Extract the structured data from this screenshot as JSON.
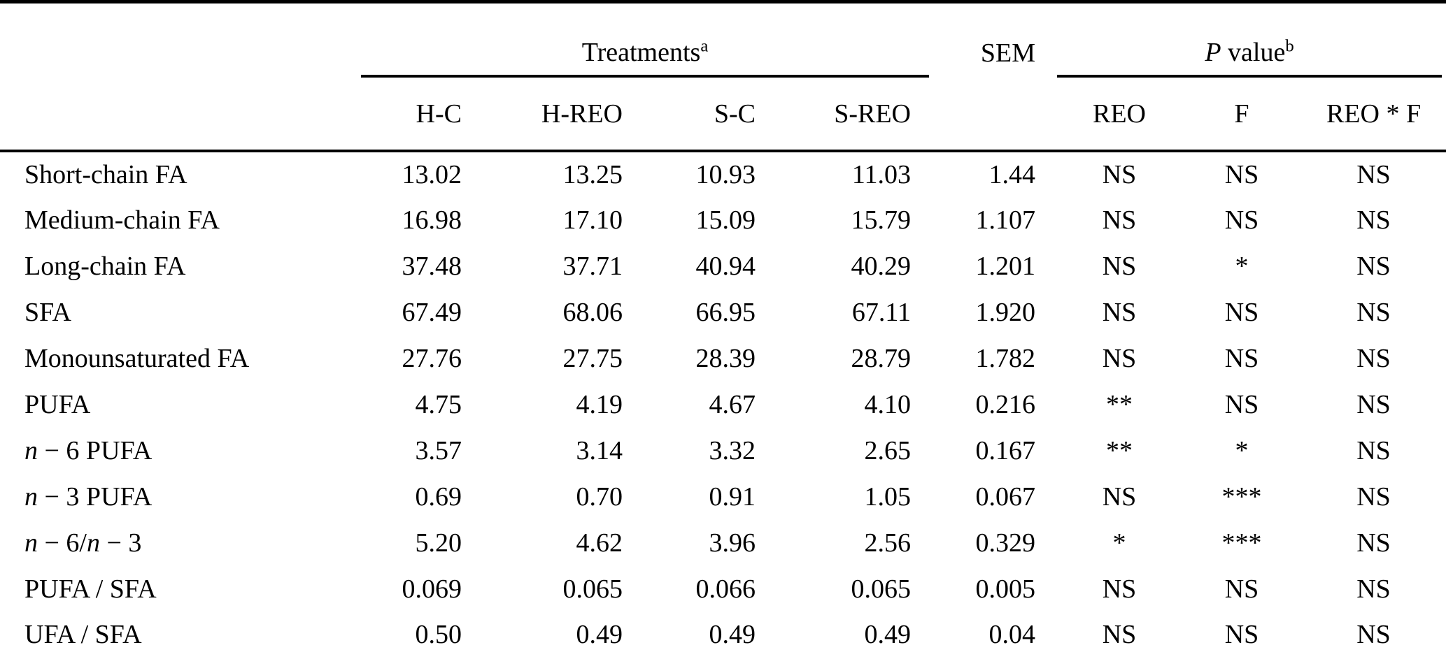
{
  "table": {
    "header": {
      "treatments": {
        "label_html": "Treatments<sup>a</sup>",
        "columns": [
          "H-C",
          "H-REO",
          "S-C",
          "S-REO"
        ]
      },
      "sem_label": "SEM",
      "p_value": {
        "label_html": "<i>P</i> value<sup>b</sup>",
        "columns": [
          "REO",
          "F",
          "REO * F"
        ]
      }
    },
    "rows": [
      {
        "label_html": "Short-chain FA",
        "values": [
          "13.02",
          "13.25",
          "10.93",
          "11.03",
          "1.44",
          "NS",
          "NS",
          "NS"
        ]
      },
      {
        "label_html": "Medium-chain FA",
        "values": [
          "16.98",
          "17.10",
          "15.09",
          "15.79",
          "1.107",
          "NS",
          "NS",
          "NS"
        ]
      },
      {
        "label_html": "Long-chain FA",
        "values": [
          "37.48",
          "37.71",
          "40.94",
          "40.29",
          "1.201",
          "NS",
          "*",
          "NS"
        ]
      },
      {
        "label_html": "SFA",
        "values": [
          "67.49",
          "68.06",
          "66.95",
          "67.11",
          "1.920",
          "NS",
          "NS",
          "NS"
        ]
      },
      {
        "label_html": "Monounsaturated FA",
        "values": [
          "27.76",
          "27.75",
          "28.39",
          "28.79",
          "1.782",
          "NS",
          "NS",
          "NS"
        ]
      },
      {
        "label_html": "PUFA",
        "values": [
          "4.75",
          "4.19",
          "4.67",
          "4.10",
          "0.216",
          "**",
          "NS",
          "NS"
        ]
      },
      {
        "label_html": "<i>n</i> − 6 PUFA",
        "values": [
          "3.57",
          "3.14",
          "3.32",
          "2.65",
          "0.167",
          "**",
          "*",
          "NS"
        ]
      },
      {
        "label_html": "<i>n</i> − 3 PUFA",
        "values": [
          "0.69",
          "0.70",
          "0.91",
          "1.05",
          "0.067",
          "NS",
          "***",
          "NS"
        ]
      },
      {
        "label_html": "<i>n</i> − 6/<i>n</i> − 3",
        "values": [
          "5.20",
          "4.62",
          "3.96",
          "2.56",
          "0.329",
          "*",
          "***",
          "NS"
        ]
      },
      {
        "label_html": "PUFA / SFA",
        "values": [
          "0.069",
          "0.065",
          "0.066",
          "0.065",
          "0.005",
          "NS",
          "NS",
          "NS"
        ]
      },
      {
        "label_html": "UFA / SFA",
        "values": [
          "0.50",
          "0.49",
          "0.49",
          "0.49",
          "0.04",
          "NS",
          "NS",
          "NS"
        ]
      }
    ]
  }
}
